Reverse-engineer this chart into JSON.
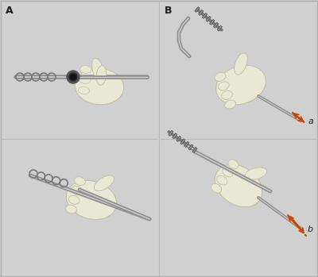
{
  "bg_color": "#c9c9c9",
  "panel_bg": "#d0d0d0",
  "label_A": "A",
  "label_B": "B",
  "label_a": "a",
  "label_b": "b",
  "arrow_color": "#cc4400",
  "fig_width": 4.0,
  "fig_height": 3.49,
  "dpi": 100,
  "hand_color": "#e8e8d5",
  "hand_outline": "#c0c0a8",
  "instrument_color": "#909090",
  "instrument_highlight": "#d0d0d0",
  "grip_color": "#787878",
  "grip_dark": "#505050",
  "outer_border_color": "#b0b0b0",
  "divider_color": "#b8b8b8"
}
